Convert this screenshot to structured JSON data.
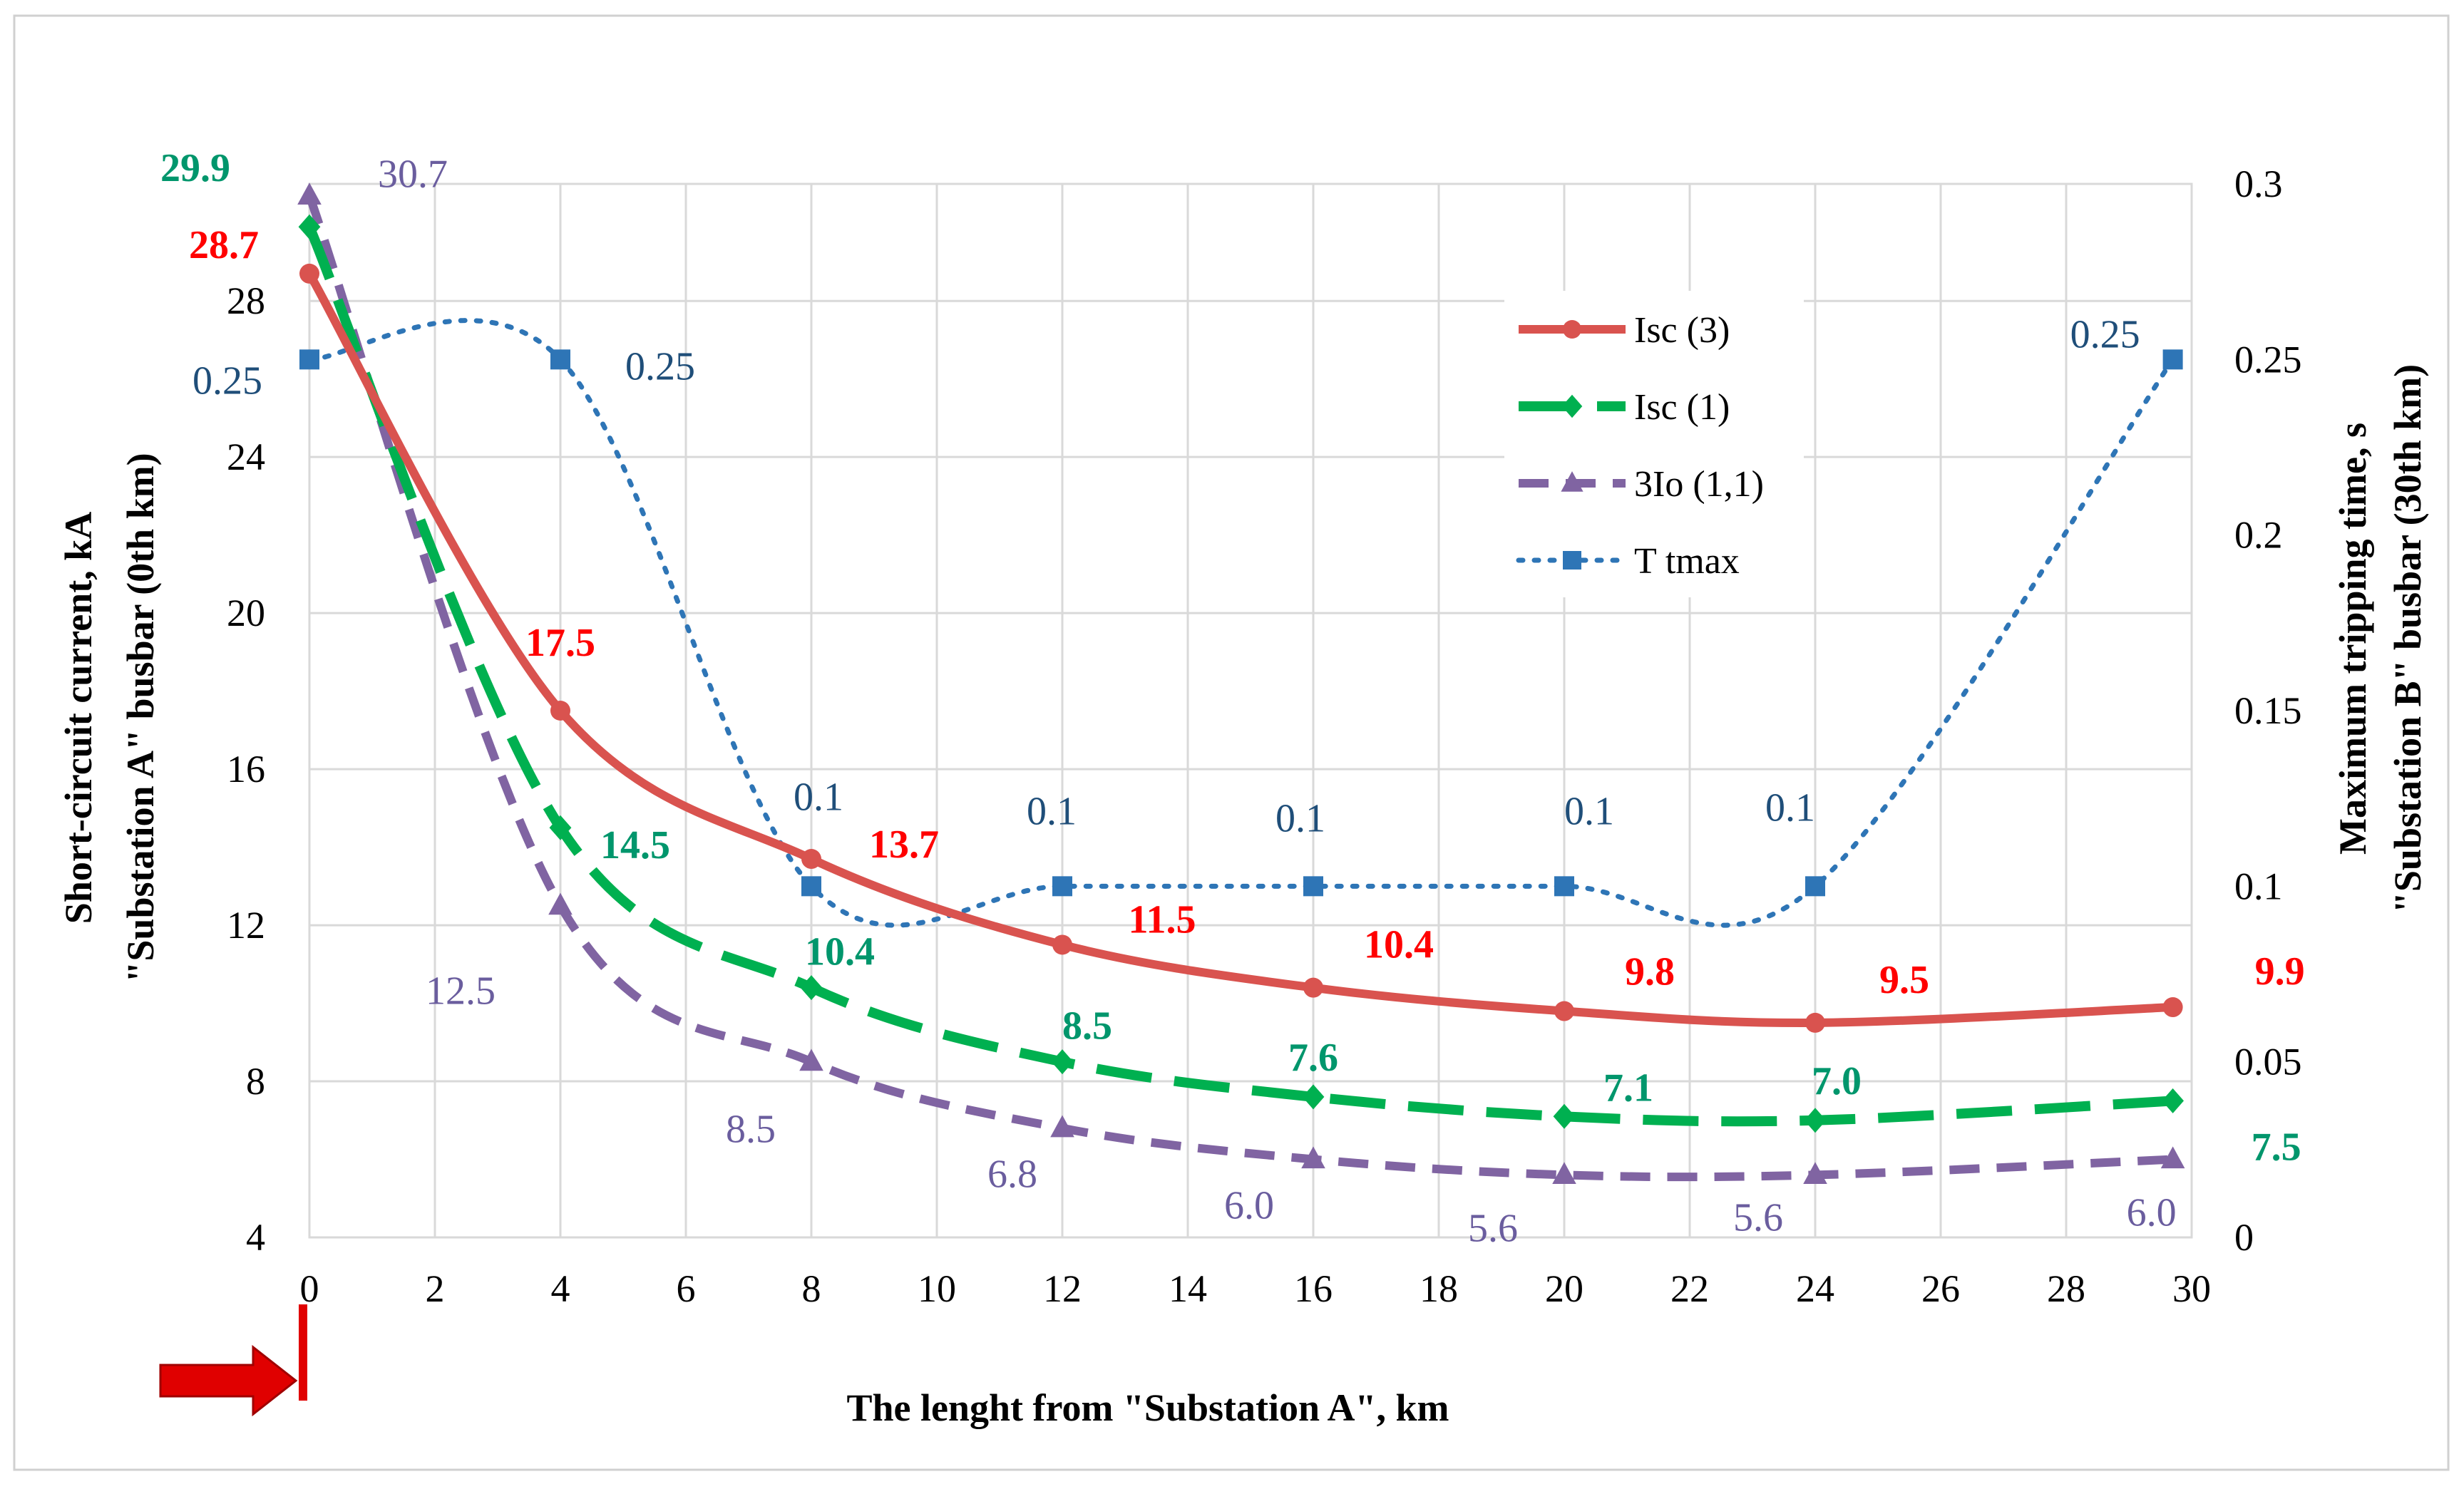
{
  "chart_data": {
    "type": "line",
    "title": "",
    "xlabel": "The lenght from \"Substation A\", km",
    "ylabel_left": [
      "Short-circuit current, kA",
      "\"Substation A\" busbar (0th km)"
    ],
    "ylabel_right": [
      "Maximum tripping time, s",
      "\"Substation B\" busbar (30th km)"
    ],
    "x_ticks": [
      "0",
      "2",
      "4",
      "6",
      "8",
      "10",
      "12",
      "14",
      "16",
      "18",
      "20",
      "22",
      "24",
      "26",
      "28",
      "30"
    ],
    "xlim": [
      0,
      30
    ],
    "y_left_ticks": [
      "4",
      "8",
      "12",
      "16",
      "20",
      "24",
      "28"
    ],
    "ylim_left": [
      4,
      31
    ],
    "y_right_ticks": [
      "0",
      "0.05",
      "0.1",
      "0.15",
      "0.2",
      "0.25",
      "0.3"
    ],
    "ylim_right": [
      0,
      0.3
    ],
    "grid": true,
    "legend_position": "top-right",
    "x": [
      0,
      4,
      8,
      12,
      16,
      20,
      24,
      29.7
    ],
    "series": [
      {
        "name": "Isc (3)",
        "axis": "left",
        "color": "#D9534F",
        "marker": "circle",
        "dash": "solid",
        "values": [
          28.7,
          17.5,
          13.7,
          11.5,
          10.4,
          9.8,
          9.5,
          9.9
        ],
        "labels": [
          "28.7",
          "17.5",
          "13.7",
          "11.5",
          "10.4",
          "9.8",
          "9.5",
          "9.9"
        ],
        "label_color": "#FF0000"
      },
      {
        "name": "Isc (1)",
        "axis": "left",
        "color": "#00B050",
        "marker": "diamond",
        "dash": "long",
        "values": [
          29.9,
          14.5,
          10.4,
          8.5,
          7.6,
          7.1,
          7.0,
          7.5
        ],
        "labels": [
          "29.9",
          "14.5",
          "10.4",
          "8.5",
          "7.6",
          "7.1",
          "7.0",
          "7.5"
        ],
        "label_color": "#00966C"
      },
      {
        "name": "3Io (1,1)",
        "axis": "left",
        "color": "#8064A2",
        "marker": "triangle",
        "dash": "medium",
        "values": [
          30.7,
          12.5,
          8.5,
          6.8,
          6.0,
          5.6,
          5.6,
          6.0
        ],
        "labels": [
          "30.7",
          "12.5",
          "8.5",
          "6.8",
          "6.0",
          "5.6",
          "5.6",
          "6.0"
        ],
        "label_color": "#6A5D9E"
      },
      {
        "name": "T tmax",
        "axis": "right",
        "color": "#2E75B6",
        "marker": "square",
        "dash": "dotted",
        "values": [
          0.25,
          0.25,
          0.1,
          0.1,
          0.1,
          0.1,
          0.1,
          0.25
        ],
        "labels": [
          "0.25",
          "0.25",
          "0.1",
          "0.1",
          "0.1",
          "0.1",
          "0.1",
          "0.25"
        ],
        "label_color": "#1F4E79"
      }
    ],
    "annotations": [
      {
        "type": "arrow",
        "color": "#E00000",
        "points_to_x": 0,
        "meaning": "Substation A position"
      }
    ]
  }
}
